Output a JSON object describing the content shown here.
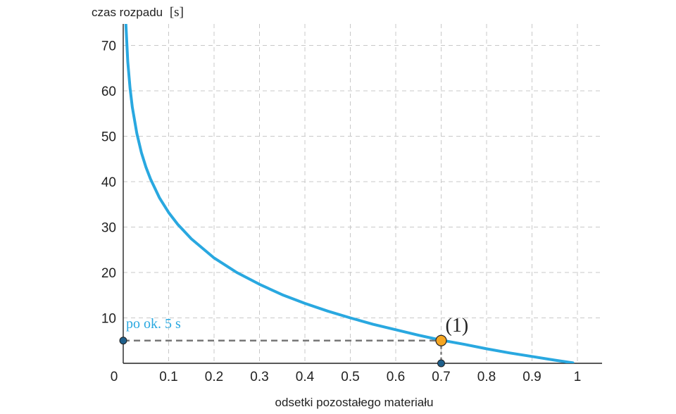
{
  "chart_data": {
    "type": "line",
    "xlabel": "odsetki pozostałego materiału",
    "ylabel": "czas rozpadu",
    "ylabel_unit": "[s]",
    "xlim": [
      0,
      1.05
    ],
    "ylim": [
      0,
      75
    ],
    "x_ticks": [
      0.1,
      0.2,
      0.3,
      0.4,
      0.5,
      0.6,
      0.7,
      0.8,
      0.9,
      1
    ],
    "x_tick_labels": [
      "0.1",
      "0.2",
      "0.3",
      "0.4",
      "0.5",
      "0.6",
      "0.7",
      "0.8",
      "0.9",
      "1"
    ],
    "y_ticks": [
      10,
      20,
      30,
      40,
      50,
      60,
      70
    ],
    "y_tick_labels": [
      "10",
      "20",
      "30",
      "40",
      "50",
      "60",
      "70"
    ],
    "origin_label": "0",
    "grid": true,
    "series": [
      {
        "color": "#29a8e0",
        "x": [
          0.005,
          0.01,
          0.015,
          0.02,
          0.03,
          0.04,
          0.05,
          0.06,
          0.08,
          0.1,
          0.12,
          0.15,
          0.2,
          0.25,
          0.3,
          0.35,
          0.4,
          0.45,
          0.5,
          0.55,
          0.6,
          0.65,
          0.7,
          0.75,
          0.8,
          0.85,
          0.9,
          0.95,
          0.99
        ],
        "y": [
          76.4,
          66.4,
          60.6,
          56.4,
          50.6,
          46.4,
          43.2,
          40.6,
          36.4,
          33.2,
          30.6,
          27.4,
          23.2,
          20.0,
          17.4,
          15.1,
          13.2,
          11.5,
          10.0,
          8.6,
          7.4,
          6.2,
          5.1,
          4.2,
          3.2,
          2.3,
          1.5,
          0.7,
          0.1
        ]
      }
    ],
    "highlight_point": {
      "x": 0.7,
      "y": 5,
      "label": "(1)",
      "color": "#f5a623"
    },
    "y_marker": {
      "y": 5,
      "color": "#1f5f8b"
    },
    "x_marker": {
      "x": 0.7,
      "color": "#1f5f8b"
    },
    "annotation": {
      "text": "po ok. 5 s",
      "color": "#29a8e0"
    }
  }
}
